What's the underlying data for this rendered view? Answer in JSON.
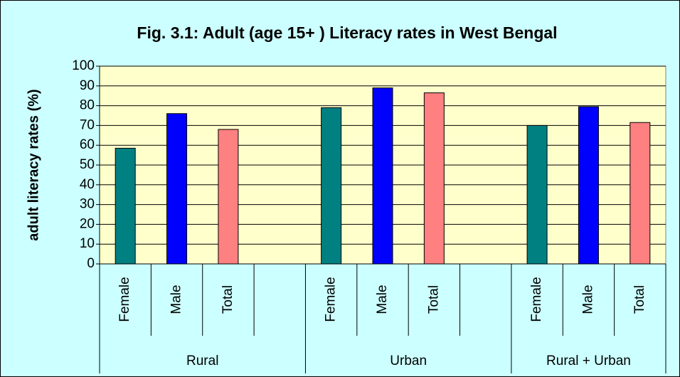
{
  "chart_data": {
    "type": "bar",
    "title": "Fig. 3.1: Adult (age 15+ ) Literacy rates in West Bengal",
    "y_label": "adult literacy rates (%)",
    "categories": [
      "Female",
      "Male",
      "Total",
      null,
      "Female",
      "Male",
      "Total",
      null,
      "Female",
      "Male",
      "Total"
    ],
    "groups": [
      "Rural",
      "Urban",
      "Rural + Urban"
    ],
    "values": [
      58.5,
      76,
      68,
      null,
      79,
      89,
      86.5,
      null,
      70,
      79.5,
      71.5
    ],
    "colors": [
      "#008080",
      "#0000ff",
      "#ff8080",
      null,
      "#008080",
      "#0000ff",
      "#ff8080",
      null,
      "#008080",
      "#0000ff",
      "#ff8080"
    ],
    "ylim": [
      0,
      100
    ],
    "yticks": [
      0,
      10,
      20,
      30,
      40,
      50,
      60,
      70,
      80,
      90,
      100
    ],
    "grid": true
  }
}
